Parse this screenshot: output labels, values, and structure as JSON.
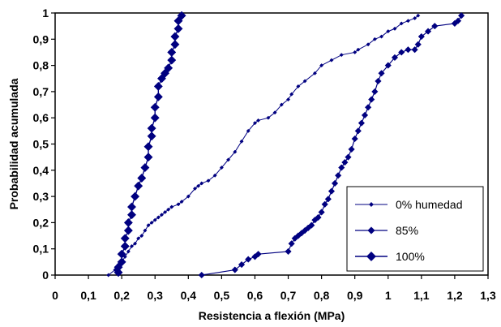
{
  "chart_data": {
    "type": "line",
    "xlabel": "Resistencia a flexión (MPa)",
    "ylabel": "Probabilidad acumulada",
    "xlim": [
      0,
      1.3
    ],
    "ylim": [
      0,
      1
    ],
    "x_ticks": [
      "0",
      "0,1",
      "0,2",
      "0,3",
      "0,4",
      "0,5",
      "0,6",
      "0,7",
      "0,8",
      "0,9",
      "1",
      "1,1",
      "1,2",
      "1,3"
    ],
    "y_ticks": [
      "0",
      "0,1",
      "0,2",
      "0,3",
      "0,4",
      "0,5",
      "0,6",
      "0,7",
      "0,8",
      "0,9",
      "1"
    ],
    "grid": false,
    "legend_position": "bottom-right",
    "series": [
      {
        "name": "0% humedad",
        "color": "#000080",
        "marker": "small",
        "x": [
          0.16,
          0.18,
          0.19,
          0.2,
          0.21,
          0.22,
          0.23,
          0.24,
          0.25,
          0.26,
          0.27,
          0.28,
          0.29,
          0.3,
          0.31,
          0.32,
          0.33,
          0.34,
          0.35,
          0.37,
          0.38,
          0.4,
          0.42,
          0.43,
          0.44,
          0.46,
          0.48,
          0.5,
          0.52,
          0.54,
          0.56,
          0.58,
          0.6,
          0.61,
          0.64,
          0.66,
          0.68,
          0.7,
          0.71,
          0.73,
          0.75,
          0.78,
          0.8,
          0.83,
          0.86,
          0.9,
          0.91,
          0.94,
          0.96,
          0.98,
          1.0,
          1.02,
          1.04,
          1.06,
          1.08,
          1.09
        ],
        "y": [
          0.0,
          0.02,
          0.04,
          0.05,
          0.07,
          0.09,
          0.11,
          0.12,
          0.14,
          0.15,
          0.17,
          0.19,
          0.2,
          0.21,
          0.22,
          0.23,
          0.24,
          0.25,
          0.26,
          0.27,
          0.28,
          0.3,
          0.33,
          0.34,
          0.35,
          0.36,
          0.38,
          0.41,
          0.44,
          0.47,
          0.51,
          0.55,
          0.58,
          0.59,
          0.6,
          0.62,
          0.65,
          0.67,
          0.69,
          0.72,
          0.74,
          0.77,
          0.8,
          0.82,
          0.84,
          0.85,
          0.86,
          0.88,
          0.9,
          0.91,
          0.93,
          0.94,
          0.96,
          0.97,
          0.98,
          0.99
        ]
      },
      {
        "name": "85%",
        "color": "#000080",
        "marker": "medium",
        "x": [
          0.44,
          0.54,
          0.56,
          0.58,
          0.6,
          0.61,
          0.7,
          0.71,
          0.72,
          0.73,
          0.74,
          0.75,
          0.76,
          0.77,
          0.78,
          0.79,
          0.8,
          0.81,
          0.82,
          0.83,
          0.84,
          0.85,
          0.86,
          0.87,
          0.88,
          0.89,
          0.9,
          0.91,
          0.92,
          0.93,
          0.94,
          0.95,
          0.96,
          0.97,
          0.98,
          1.0,
          1.02,
          1.04,
          1.06,
          1.08,
          1.09,
          1.1,
          1.12,
          1.14,
          1.2,
          1.21,
          1.22
        ],
        "y": [
          0.0,
          0.02,
          0.04,
          0.06,
          0.07,
          0.08,
          0.09,
          0.12,
          0.14,
          0.15,
          0.16,
          0.17,
          0.18,
          0.19,
          0.21,
          0.22,
          0.24,
          0.27,
          0.29,
          0.32,
          0.35,
          0.38,
          0.41,
          0.43,
          0.45,
          0.48,
          0.52,
          0.55,
          0.58,
          0.61,
          0.64,
          0.67,
          0.7,
          0.74,
          0.77,
          0.8,
          0.83,
          0.85,
          0.86,
          0.86,
          0.88,
          0.91,
          0.93,
          0.95,
          0.96,
          0.97,
          0.99
        ]
      },
      {
        "name": "100%",
        "color": "#000080",
        "marker": "large",
        "x": [
          0.19,
          0.19,
          0.2,
          0.2,
          0.21,
          0.21,
          0.22,
          0.22,
          0.23,
          0.23,
          0.24,
          0.25,
          0.26,
          0.27,
          0.28,
          0.28,
          0.29,
          0.29,
          0.3,
          0.3,
          0.31,
          0.31,
          0.32,
          0.33,
          0.34,
          0.35,
          0.35,
          0.36,
          0.36,
          0.37,
          0.37,
          0.38
        ],
        "y": [
          0.01,
          0.03,
          0.05,
          0.08,
          0.11,
          0.14,
          0.17,
          0.2,
          0.23,
          0.26,
          0.3,
          0.34,
          0.37,
          0.41,
          0.45,
          0.49,
          0.53,
          0.56,
          0.6,
          0.64,
          0.68,
          0.72,
          0.75,
          0.77,
          0.79,
          0.82,
          0.85,
          0.88,
          0.91,
          0.94,
          0.97,
          0.99
        ]
      }
    ]
  }
}
